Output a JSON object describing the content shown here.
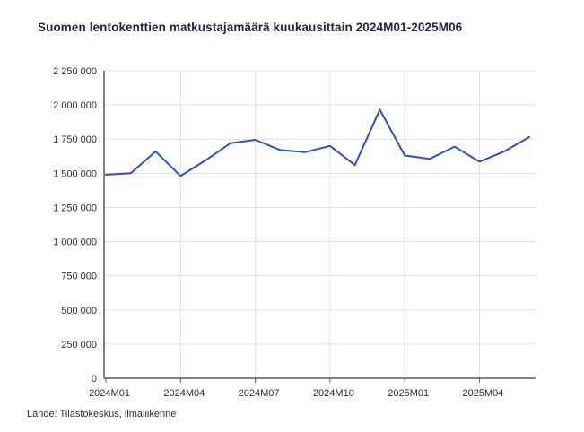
{
  "header": {
    "title": "Suomen lentokenttien matkustajamäärä kuukausittain 2024M01-2025M06",
    "menu_icon": "hamburger-menu-icon"
  },
  "footer": {
    "source": "Lähde: Tilastokeskus, ilmaliikenne"
  },
  "colors": {
    "line": "#2d50c3",
    "title": "#1c2739",
    "grid": "#e1e1e1",
    "axis": "#5a5a5a",
    "label": "#2e2e2e",
    "background": "#ffffff"
  },
  "chart_data": {
    "type": "line",
    "title": "Suomen lentokenttien matkustajamäärä kuukausittain 2024M01-2025M06",
    "xlabel": "",
    "ylabel": "",
    "grid": true,
    "legend": false,
    "ylim": [
      0,
      2250000
    ],
    "ytick_interval": 250000,
    "ytick_labels": [
      "0",
      "250 000",
      "500 000",
      "750 000",
      "1 000 000",
      "1 250 000",
      "1 500 000",
      "1 750 000",
      "2 000 000",
      "2 250 000"
    ],
    "categories": [
      "2024M01",
      "2024M02",
      "2024M03",
      "2024M04",
      "2024M05",
      "2024M06",
      "2024M07",
      "2024M08",
      "2024M09",
      "2024M10",
      "2024M11",
      "2024M12",
      "2025M01",
      "2025M02",
      "2025M03",
      "2025M04",
      "2025M05",
      "2025M06"
    ],
    "values": [
      1490000,
      1500000,
      1660000,
      1480000,
      1595000,
      1720000,
      1745000,
      1670000,
      1655000,
      1700000,
      1560000,
      1965000,
      1630000,
      1605000,
      1695000,
      1585000,
      1660000,
      1765000
    ],
    "xtick_indices": [
      0,
      3,
      6,
      9,
      12,
      15
    ],
    "xtick_labels": [
      "2024M01",
      "2024M04",
      "2024M07",
      "2024M10",
      "2025M01",
      "2025M04"
    ]
  }
}
